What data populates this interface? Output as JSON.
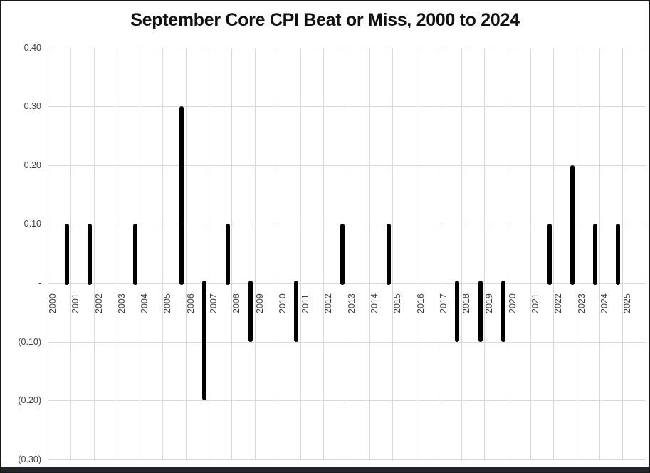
{
  "chart_data": {
    "type": "bar",
    "title": "September Core CPI Beat or Miss, 2000 to 2024",
    "categories": [
      "2000",
      "2001",
      "2002",
      "2003",
      "2004",
      "2005",
      "2006",
      "2007",
      "2008",
      "2009",
      "2010",
      "2011",
      "2012",
      "2013",
      "2014",
      "2015",
      "2016",
      "2017",
      "2018",
      "2019",
      "2020",
      "2021",
      "2022",
      "2023",
      "2024",
      "2025"
    ],
    "values": [
      0.1,
      0.1,
      0,
      0.1,
      0,
      0.3,
      -0.2,
      0.1,
      -0.1,
      0,
      -0.1,
      0,
      0.1,
      0,
      0.1,
      0,
      0,
      -0.1,
      -0.1,
      -0.1,
      0,
      0.1,
      0.2,
      0.1,
      0.1,
      null
    ],
    "ylim": [
      -0.3,
      0.4
    ],
    "ytick_step": 0.1,
    "ytick_labels": [
      "0.40",
      "0.30",
      "0.20",
      "0.10",
      "-",
      "(0.10)",
      "(0.20)",
      "(0.30)"
    ],
    "xlabel": "",
    "ylabel": "",
    "grid": true,
    "legend": "none",
    "bar_color": "#000000",
    "gridline_color": "#d9d9d9",
    "axis_label_color": "#3f3f3f",
    "frame_border_color": "#1a1a1a",
    "bottom_bar_color": "#20242c",
    "background_color": "#ffffff"
  }
}
